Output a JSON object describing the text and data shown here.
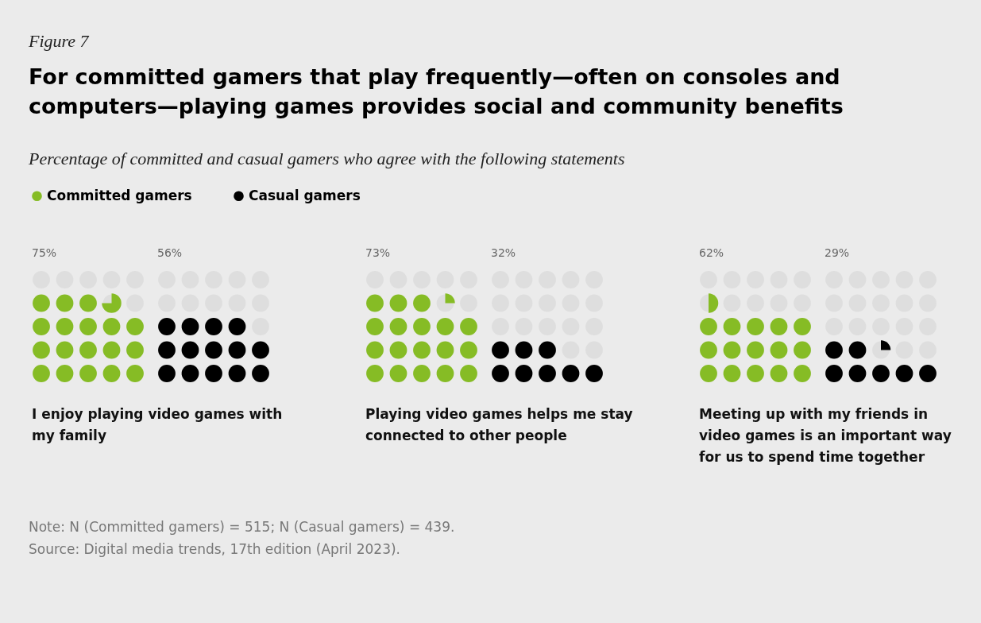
{
  "chart_data": {
    "type": "other",
    "title": "For committed gamers that play frequently—often on consoles and computers—playing games provides social and community benefits",
    "subtitle": "Percentage of committed and casual gamers who agree with the following statements",
    "categories": [
      "I enjoy playing video games with my family",
      "Playing video games helps me stay connected to other people",
      "Meeting up with my friends in video games is an important way for us to spend time together"
    ],
    "series": [
      {
        "name": "Committed gamers",
        "color": "#86bc25",
        "values": [
          75,
          73,
          62
        ],
        "value_labels": [
          "75%",
          "73%",
          "62%"
        ]
      },
      {
        "name": "Casual gamers",
        "color": "#000000",
        "values": [
          56,
          32,
          29
        ],
        "value_labels": [
          "56%",
          "32%",
          "29%"
        ]
      }
    ],
    "legend": "top left",
    "annotations": [
      "Figure 7",
      "Note: N (Committed gamers) = 515; N (Casual gamers) = 439.",
      "Source: Digital media trends, 17th edition (April 2023)."
    ]
  }
}
